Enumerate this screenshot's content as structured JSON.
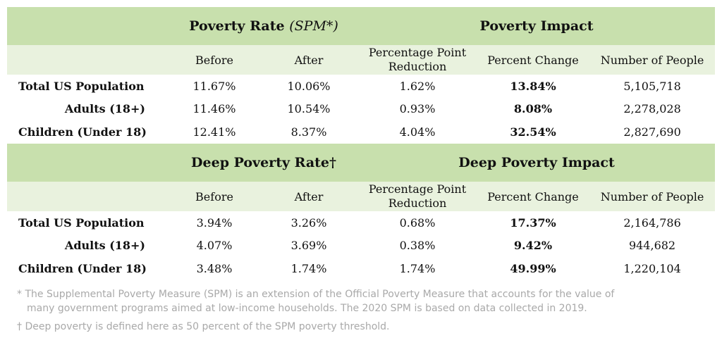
{
  "poverty": {
    "rate_title": "Poverty Rate",
    "rate_title_spm": "(SPM*)",
    "impact_title": "Poverty Impact",
    "headers": {
      "before": "Before",
      "after": "After",
      "ppr_line1": "Percentage Point",
      "ppr_line2": "Reduction",
      "pct_change": "Percent Change",
      "num_people": "Number of People"
    },
    "rows": [
      {
        "label": "Total US Population",
        "before": "11.67%",
        "after": "10.06%",
        "ppr": "1.62%",
        "pct": "13.84%",
        "people": "5,105,718"
      },
      {
        "label": "Adults (18+)",
        "before": "11.46%",
        "after": "10.54%",
        "ppr": "0.93%",
        "pct": "8.08%",
        "people": "2,278,028"
      },
      {
        "label": "Children (Under 18)",
        "before": "12.41%",
        "after": "8.37%",
        "ppr": "4.04%",
        "pct": "32.54%",
        "people": "2,827,690"
      }
    ]
  },
  "deep": {
    "rate_title": "Deep Poverty Rate†",
    "impact_title": "Deep Poverty Impact",
    "headers": {
      "before": "Before",
      "after": "After",
      "ppr_line1": "Percentage Point",
      "ppr_line2": "Reduction",
      "pct_change": "Percent Change",
      "num_people": "Number of People"
    },
    "rows": [
      {
        "label": "Total US Population",
        "before": "3.94%",
        "after": "3.26%",
        "ppr": "0.68%",
        "pct": "17.37%",
        "people": "2,164,786"
      },
      {
        "label": "Adults (18+)",
        "before": "4.07%",
        "after": "3.69%",
        "ppr": "0.38%",
        "pct": "9.42%",
        "people": "944,682"
      },
      {
        "label": "Children (Under 18)",
        "before": "3.48%",
        "after": "1.74%",
        "ppr": "1.74%",
        "pct": "49.99%",
        "people": "1,220,104"
      }
    ]
  },
  "footnotes": {
    "spm_line1": "* The Supplemental Poverty Measure (SPM) is an extension of the Official Poverty Measure that accounts for the value of",
    "spm_line2": "many government programs aimed at low-income households. The 2020 SPM is based on data collected in 2019.",
    "deep": "† Deep poverty is defined here as 50 percent of the SPM poverty threshold."
  },
  "colors": {
    "title_band": "#c8e0ad",
    "header_band": "#e9f2de",
    "footnote_text": "#a9a9a9"
  }
}
